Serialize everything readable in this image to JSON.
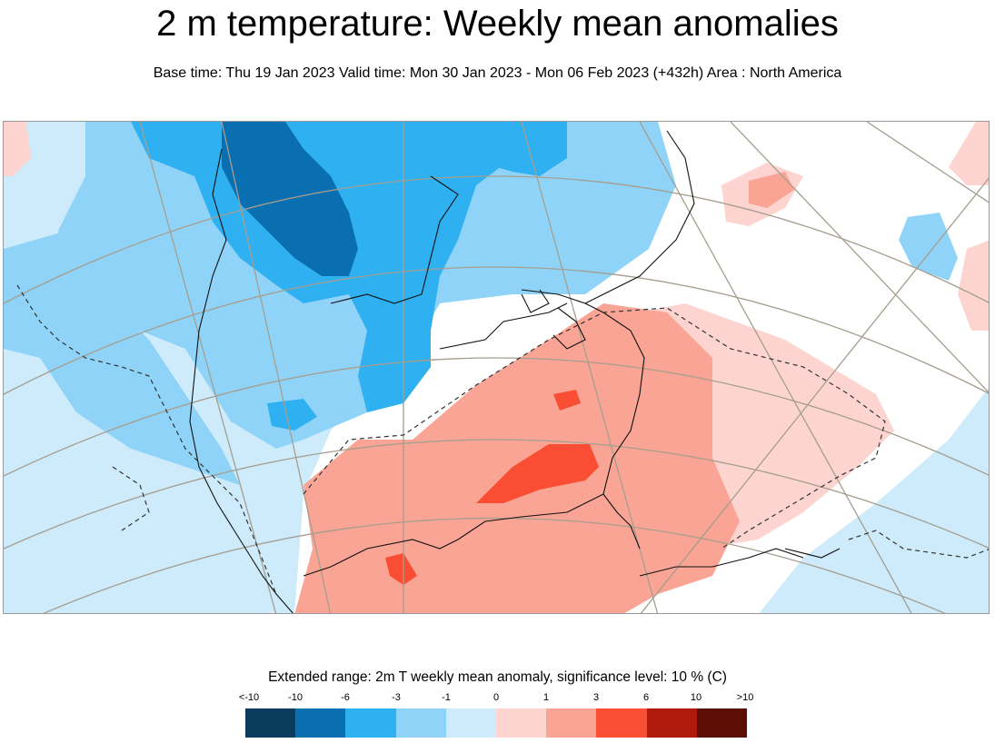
{
  "header": {
    "title": "2 m temperature: Weekly mean anomalies",
    "subtitle": "Base time: Thu 19 Jan 2023 Valid time: Mon 30 Jan 2023 - Mon 06 Feb 2023 (+432h) Area : North America"
  },
  "legend": {
    "title": "Extended range: 2m T weekly mean anomaly, significance level: 10 % (C)",
    "ticks": [
      "<-10",
      "-10",
      "-6",
      "-3",
      "-1",
      "0",
      "1",
      "3",
      "6",
      "10",
      ">10"
    ],
    "colors": [
      "#0a3a5c",
      "#0a6fb0",
      "#2fb0f0",
      "#8fd4f8",
      "#cdebfb",
      "#ffffff",
      "#fdd4cf",
      "#f9a494",
      "#f94e33",
      "#b01a0a",
      "#5c0d04"
    ]
  },
  "map": {
    "area": "North America",
    "layers": {
      "land_color": "#ffffff",
      "coastline_color": "#111111",
      "graticule_color": "#a59e8f"
    }
  }
}
